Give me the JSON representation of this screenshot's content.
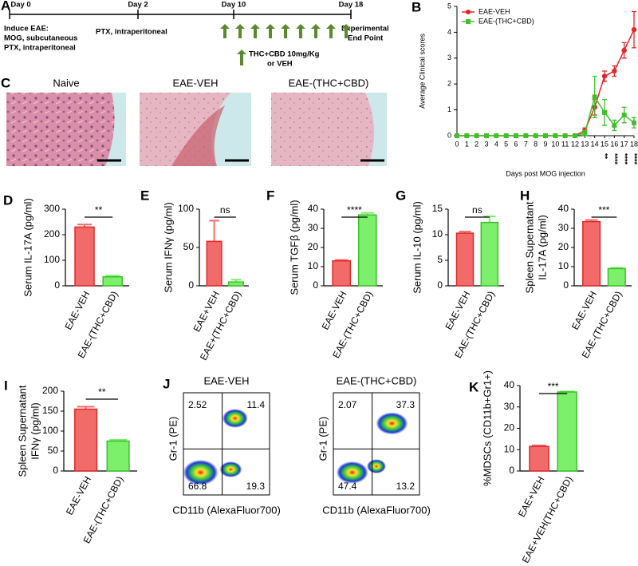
{
  "timeline": {
    "panel": "A",
    "days": [
      "Day 0",
      "Day 2",
      "Day 10",
      "Day 18"
    ],
    "induce": [
      "Induce EAE:",
      "MOG, subcutaneous",
      "PTX, intraperitoneal"
    ],
    "day2_note": "PTX, intraperitoneal",
    "end": [
      "Experimental",
      "End Point"
    ],
    "treatment": [
      "THC+CBD 10mg/Kg",
      "or VEH"
    ]
  },
  "histology": {
    "panel": "C",
    "titles": [
      "Naive",
      "EAE-VEH",
      "EAE-(THC+CBD)"
    ]
  },
  "flow": {
    "panel": "J",
    "x_label": "CD11b (AlexaFluor700)",
    "y_label": "Gr-1 (PE)",
    "plots": [
      {
        "title": "EAE-VEH",
        "quadrants": [
          2.52,
          11.4,
          66.8,
          19.3
        ]
      },
      {
        "title": "EAE-(THC+CBD)",
        "quadrants": [
          2.07,
          37.3,
          47.4,
          13.2
        ]
      }
    ]
  },
  "chart_data": [
    {
      "type": "line",
      "panel": "B",
      "y_label": "Average Clinical scores",
      "x_label": "Days post MOG injection",
      "x": [
        0,
        1,
        2,
        3,
        4,
        5,
        6,
        7,
        8,
        9,
        10,
        11,
        12,
        13,
        14,
        15,
        16,
        17,
        18
      ],
      "xlim": [
        0,
        18
      ],
      "xticks": [
        0,
        1,
        2,
        3,
        4,
        5,
        6,
        7,
        8,
        9,
        10,
        11,
        12,
        13,
        14,
        15,
        16,
        17,
        18
      ],
      "ylim": [
        0,
        5
      ],
      "yticks": [
        0,
        1,
        2,
        3,
        4,
        5
      ],
      "legend": "upper-left",
      "series": [
        {
          "name": "EAE-VEH",
          "color": "#e8242a",
          "marker": "circle",
          "values": [
            0,
            0,
            0,
            0,
            0,
            0,
            0,
            0,
            0,
            0,
            0,
            0,
            0,
            0.2,
            1.1,
            2.3,
            2.5,
            3.3,
            4.1
          ],
          "errors": [
            0,
            0,
            0,
            0,
            0,
            0,
            0,
            0,
            0,
            0,
            0,
            0,
            0,
            0.1,
            0.3,
            0.2,
            0.2,
            0.3,
            0.7
          ]
        },
        {
          "name": "EAE-(THC+CBD)",
          "color": "#3fc12b",
          "marker": "square",
          "values": [
            0,
            0,
            0,
            0,
            0,
            0,
            0,
            0,
            0,
            0,
            0,
            0,
            0,
            0.1,
            1.5,
            0.9,
            0.4,
            0.8,
            0.5
          ],
          "errors": [
            0,
            0,
            0,
            0,
            0,
            0,
            0,
            0,
            0,
            0,
            0,
            0,
            0,
            0.1,
            0.8,
            0.5,
            0.2,
            0.3,
            0.2
          ]
        }
      ],
      "annotations": [
        {
          "x": 15,
          "text": "**"
        },
        {
          "x": 16,
          "text": "****"
        },
        {
          "x": 17,
          "text": "****"
        },
        {
          "x": 18,
          "text": "****"
        }
      ]
    },
    {
      "type": "bar",
      "panel": "D",
      "y_label": [
        "Serum IL-17A (pg/ml)"
      ],
      "categories": [
        "EAE-VEH",
        "EAE-(THC+CBD)"
      ],
      "values": [
        230,
        35
      ],
      "errors": [
        10,
        5
      ],
      "colors": [
        "#f26b6b",
        "#7cf06a"
      ],
      "ylim": [
        0,
        300
      ],
      "yticks": [
        0,
        100,
        200,
        300
      ],
      "significance": "**"
    },
    {
      "type": "bar",
      "panel": "E",
      "y_label": [
        "Serum IFNγ (pg/ml)"
      ],
      "categories": [
        "EAE+VEH",
        "EAE+(THC+CBD)"
      ],
      "values": [
        58,
        5
      ],
      "errors": [
        27,
        3
      ],
      "colors": [
        "#f26b6b",
        "#7cf06a"
      ],
      "ylim": [
        0,
        100
      ],
      "yticks": [
        0,
        50,
        100
      ],
      "significance": "ns"
    },
    {
      "type": "bar",
      "panel": "F",
      "y_label": [
        "Serum TGFβ (pg/ml)"
      ],
      "categories": [
        "EAE-VEH",
        "EAE-(THC+CBD)"
      ],
      "values": [
        13,
        37
      ],
      "errors": [
        0.5,
        1
      ],
      "colors": [
        "#f26b6b",
        "#7cf06a"
      ],
      "ylim": [
        0,
        40
      ],
      "yticks": [
        0,
        10,
        20,
        30,
        40
      ],
      "significance": "****"
    },
    {
      "type": "bar",
      "panel": "G",
      "y_label": [
        "Serum IL-10 (pg/ml)"
      ],
      "categories": [
        "EAE-VEH",
        "EAE-(THC+CBD)"
      ],
      "values": [
        10.3,
        12.4
      ],
      "errors": [
        0.3,
        1.2
      ],
      "colors": [
        "#f26b6b",
        "#7cf06a"
      ],
      "ylim": [
        0,
        15
      ],
      "yticks": [
        0,
        5,
        10,
        15
      ],
      "significance": "ns"
    },
    {
      "type": "bar",
      "panel": "H",
      "y_label": [
        "Spleen Supernatant",
        "IL-17A (pg/ml)"
      ],
      "categories": [
        "EAE-VEH",
        "EAE-(THC+CBD)"
      ],
      "values": [
        33.5,
        9
      ],
      "errors": [
        0.8,
        0.4
      ],
      "colors": [
        "#f26b6b",
        "#7cf06a"
      ],
      "ylim": [
        0,
        40
      ],
      "yticks": [
        0,
        10,
        20,
        30,
        40
      ],
      "significance": "***"
    },
    {
      "type": "bar",
      "panel": "I",
      "y_label": [
        "Spleen Supernatant",
        "IFNγ (pg/ml)"
      ],
      "categories": [
        "EAE-VEH",
        "EAE-(THC+CBD)"
      ],
      "values": [
        155,
        75
      ],
      "errors": [
        6,
        3
      ],
      "colors": [
        "#f26b6b",
        "#7cf06a"
      ],
      "ylim": [
        0,
        200
      ],
      "yticks": [
        0,
        50,
        100,
        150,
        200
      ],
      "significance": "**"
    },
    {
      "type": "bar",
      "panel": "K",
      "y_label": [
        "%MDSCs (CD11b+Gr1+)"
      ],
      "categories": [
        "EAE+VEH",
        "EAE+VEH(THC+CBD)"
      ],
      "values": [
        11.5,
        37
      ],
      "errors": [
        0.5,
        0.3
      ],
      "colors": [
        "#f26b6b",
        "#7cf06a"
      ],
      "ylim": [
        0,
        40
      ],
      "yticks": [
        0,
        10,
        20,
        30,
        40
      ],
      "significance": "***"
    }
  ]
}
